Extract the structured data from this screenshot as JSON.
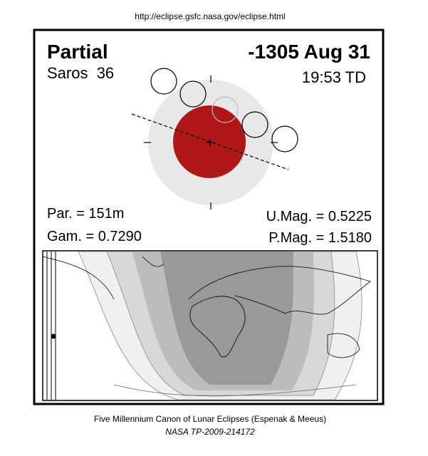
{
  "header": {
    "url": "http://eclipse.gsfc.nasa.gov/eclipse.html"
  },
  "eclipse": {
    "type": "Partial",
    "date": "-1305 Aug 31",
    "saros": "Saros  36",
    "time": "19:53 TD",
    "par": "Par. = 151m",
    "gam": "Gam. = 0.7290",
    "umag": "U.Mag. = 0.5225",
    "pmag": "P.Mag. = 1.5180"
  },
  "footer": {
    "line1": "Five Millennium Canon of Lunar Eclipses (Espenak & Meeus)",
    "line2": "NASA TP-2009-214172"
  }
}
